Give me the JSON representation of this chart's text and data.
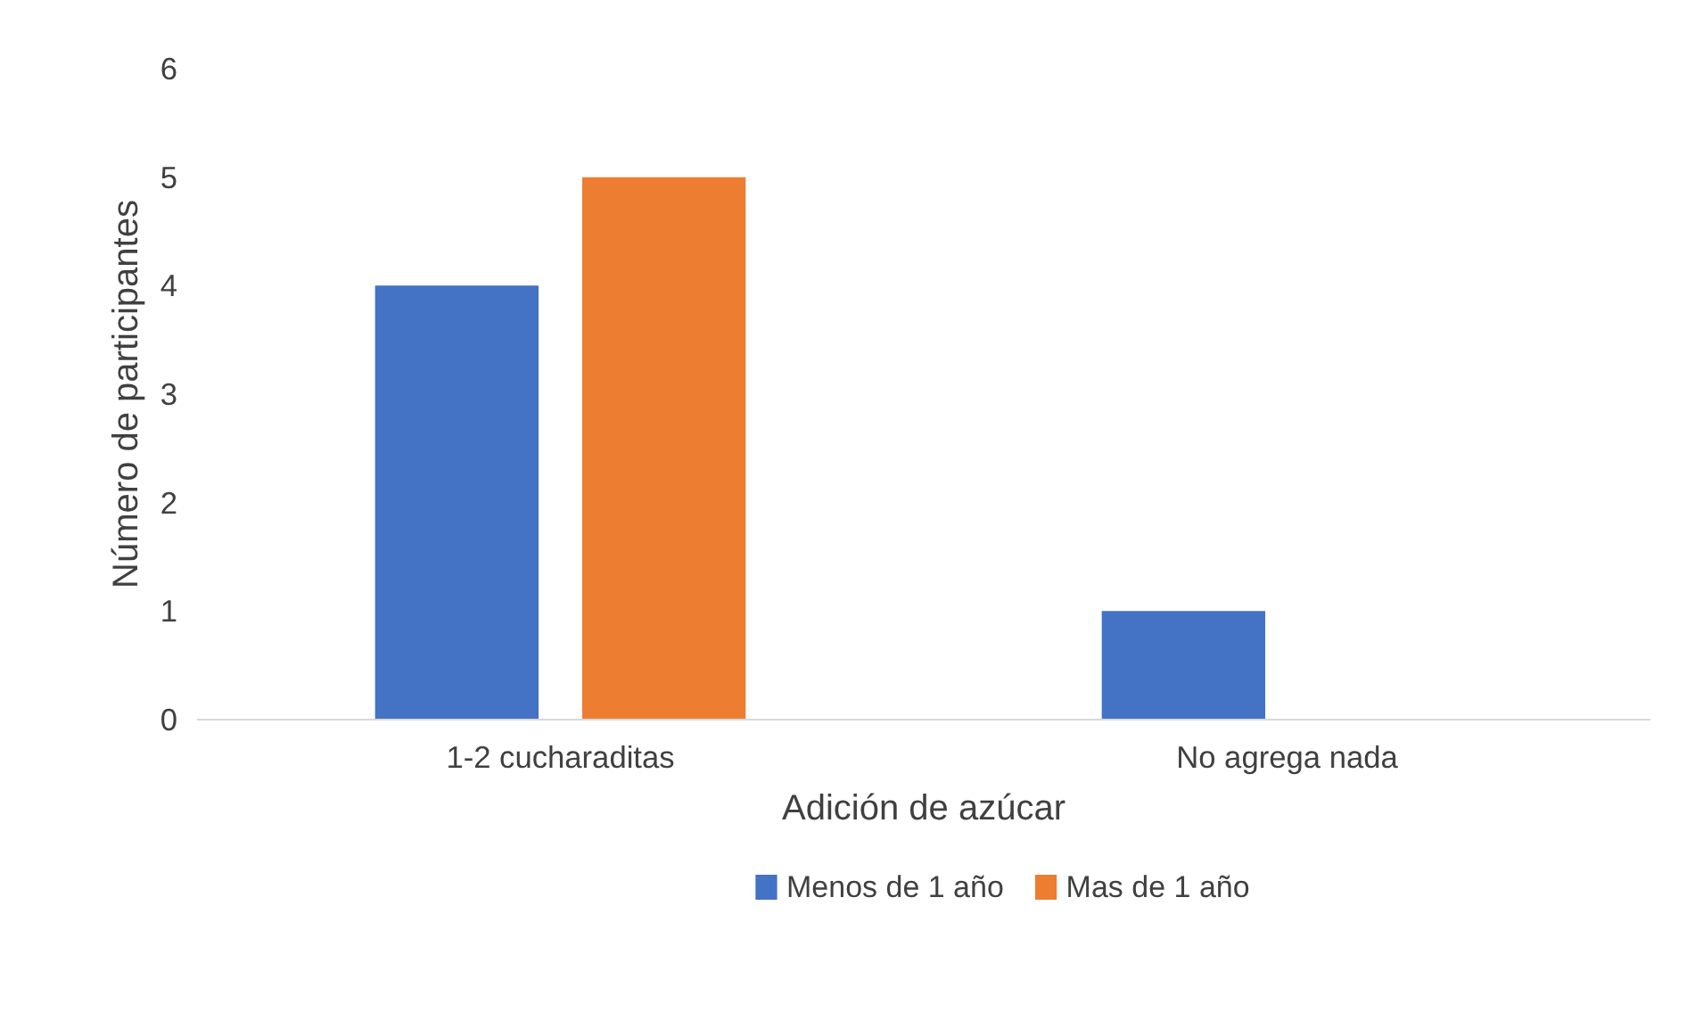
{
  "chart_data": {
    "type": "bar",
    "xlabel": "Adición de azúcar",
    "ylabel": "Número de participantes",
    "categories": [
      "1-2 cucharaditas",
      "No agrega nada"
    ],
    "series": [
      {
        "name": "Menos de 1 año",
        "color": "#4472c4",
        "values": [
          4,
          1
        ]
      },
      {
        "name": "Mas de 1 año",
        "color": "#ed7d31",
        "values": [
          5,
          0
        ]
      }
    ],
    "ylim": [
      0,
      6
    ],
    "yticks": [
      0,
      1,
      2,
      3,
      4,
      5,
      6
    ],
    "grid": false,
    "legend": "bottom"
  }
}
